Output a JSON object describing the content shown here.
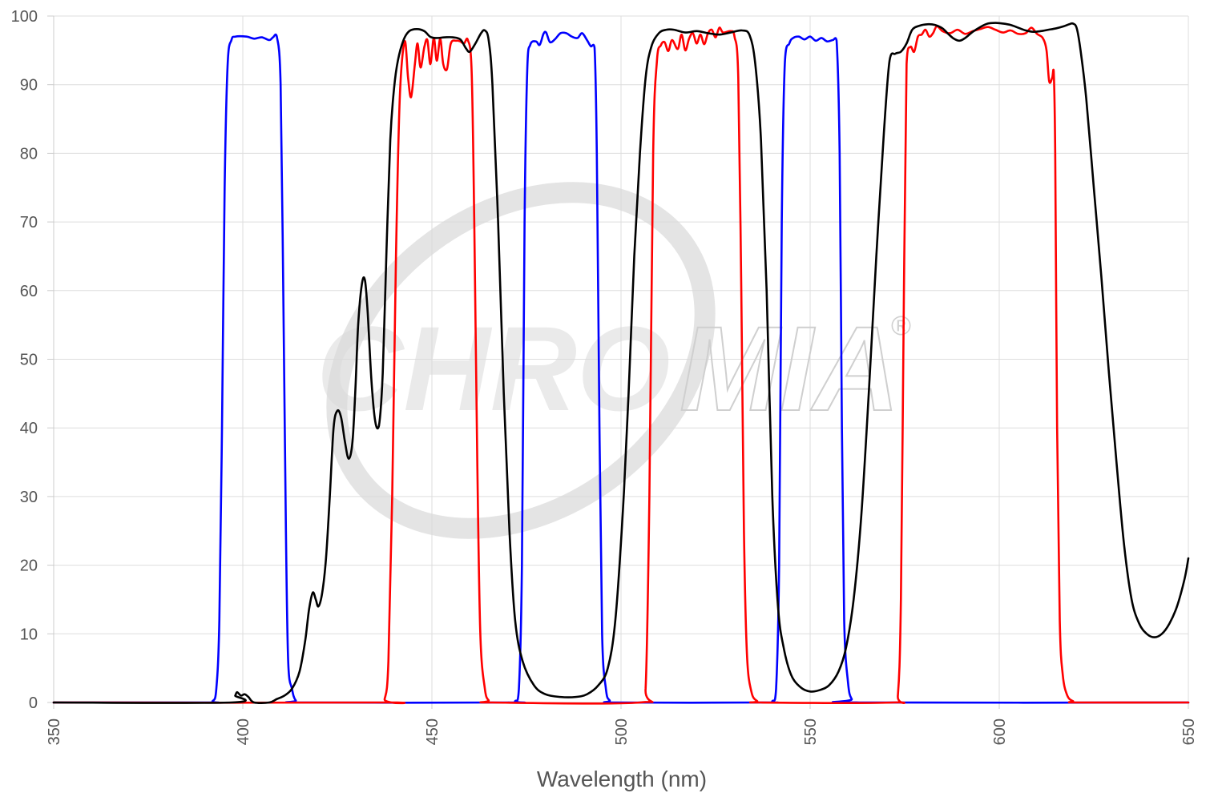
{
  "watermark": {
    "text_left": "CHRO",
    "text_right": "MIA",
    "registered": "®"
  },
  "chart_data": {
    "type": "line",
    "title": "",
    "xlabel": "Wavelength (nm)",
    "ylabel": "",
    "xlim": [
      350,
      650
    ],
    "ylim": [
      0,
      100
    ],
    "x_ticks": [
      350,
      400,
      450,
      500,
      550,
      600,
      650
    ],
    "y_ticks": [
      0,
      10,
      20,
      30,
      40,
      50,
      60,
      70,
      80,
      90,
      100
    ],
    "grid": true,
    "legend": "none",
    "colors": {
      "blue": "#0000ff",
      "red": "#ff0000",
      "black": "#000000",
      "grid": "#dddddd",
      "axis": "#cccccc"
    },
    "series": [
      {
        "color": "#0000ff",
        "points": [
          [
            350,
            0
          ],
          [
            390,
            0
          ],
          [
            392,
            0.2
          ],
          [
            393,
            2
          ],
          [
            393.8,
            12
          ],
          [
            394.5,
            40
          ],
          [
            395.2,
            75
          ],
          [
            396,
            93
          ],
          [
            397,
            96.5
          ],
          [
            398,
            97
          ],
          [
            401,
            97
          ],
          [
            403,
            96.7
          ],
          [
            405,
            96.9
          ],
          [
            407,
            96.5
          ],
          [
            408,
            96.9
          ],
          [
            409,
            97
          ],
          [
            410,
            90
          ],
          [
            410.7,
            60
          ],
          [
            411.4,
            25
          ],
          [
            412,
            6
          ],
          [
            413,
            2
          ],
          [
            414,
            0.3
          ],
          [
            416,
            0
          ],
          [
            470,
            0
          ],
          [
            472,
            0.2
          ],
          [
            473,
            2
          ],
          [
            473.8,
            20
          ],
          [
            474.5,
            70
          ],
          [
            475.2,
            92
          ],
          [
            476,
            95.8
          ],
          [
            477.5,
            96.3
          ],
          [
            478.5,
            95.8
          ],
          [
            479.5,
            97.4
          ],
          [
            480.2,
            97.6
          ],
          [
            481.2,
            96.2
          ],
          [
            482.5,
            96.6
          ],
          [
            484,
            97.5
          ],
          [
            485.5,
            97.5
          ],
          [
            487,
            97
          ],
          [
            488.5,
            96.8
          ],
          [
            489.7,
            97.5
          ],
          [
            491,
            96.5
          ],
          [
            492,
            95.6
          ],
          [
            493,
            95.4
          ],
          [
            493.6,
            80
          ],
          [
            494.3,
            40
          ],
          [
            495,
            10
          ],
          [
            496,
            2
          ],
          [
            497,
            0.3
          ],
          [
            499,
            0
          ],
          [
            538,
            0
          ],
          [
            540,
            0.2
          ],
          [
            541,
            2
          ],
          [
            541.8,
            20
          ],
          [
            542.5,
            70
          ],
          [
            543.3,
            93
          ],
          [
            544.5,
            96
          ],
          [
            545.5,
            96.8
          ],
          [
            547,
            97
          ],
          [
            548.5,
            96.6
          ],
          [
            550,
            97
          ],
          [
            551.5,
            96.4
          ],
          [
            553,
            96.8
          ],
          [
            554.5,
            96.3
          ],
          [
            556,
            96.5
          ],
          [
            557,
            96.4
          ],
          [
            557.8,
            80
          ],
          [
            558.4,
            40
          ],
          [
            559,
            12
          ],
          [
            560,
            3
          ],
          [
            561,
            0.5
          ],
          [
            563,
            0
          ],
          [
            650,
            0
          ]
        ]
      },
      {
        "color": "#ff0000",
        "points": [
          [
            350,
            0
          ],
          [
            436,
            0
          ],
          [
            437.5,
            0.5
          ],
          [
            438.5,
            6
          ],
          [
            439.5,
            30
          ],
          [
            440.5,
            65
          ],
          [
            441.5,
            88
          ],
          [
            442.8,
            96.3
          ],
          [
            443.7,
            91
          ],
          [
            444.5,
            88.2
          ],
          [
            445.5,
            93
          ],
          [
            446.2,
            96
          ],
          [
            447,
            92.5
          ],
          [
            448,
            95.5
          ],
          [
            448.8,
            96.5
          ],
          [
            449.6,
            93
          ],
          [
            450.5,
            96.8
          ],
          [
            451.3,
            93.5
          ],
          [
            452.2,
            96.7
          ],
          [
            453,
            93
          ],
          [
            454,
            92.3
          ],
          [
            455,
            96
          ],
          [
            456.5,
            96.4
          ],
          [
            457.5,
            96.3
          ],
          [
            458.5,
            96
          ],
          [
            459.5,
            96.5
          ],
          [
            460.5,
            92
          ],
          [
            461.2,
            70
          ],
          [
            462,
            35
          ],
          [
            462.8,
            10
          ],
          [
            464,
            2
          ],
          [
            465,
            0.3
          ],
          [
            466,
            0
          ],
          [
            505,
            0
          ],
          [
            506.5,
            2
          ],
          [
            507.5,
            30
          ],
          [
            508.5,
            80
          ],
          [
            509.5,
            93.5
          ],
          [
            510.5,
            95.7
          ],
          [
            511.5,
            96.2
          ],
          [
            512.5,
            94.9
          ],
          [
            513.5,
            96.5
          ],
          [
            515,
            95.2
          ],
          [
            516,
            97.3
          ],
          [
            517,
            95
          ],
          [
            518,
            96.7
          ],
          [
            519,
            97.5
          ],
          [
            520,
            96
          ],
          [
            521,
            97.3
          ],
          [
            522,
            95.9
          ],
          [
            523,
            97.5
          ],
          [
            524,
            98
          ],
          [
            525,
            96.9
          ],
          [
            526,
            98.3
          ],
          [
            527,
            97.6
          ],
          [
            529,
            97.8
          ],
          [
            530,
            97
          ],
          [
            531,
            91
          ],
          [
            531.8,
            60
          ],
          [
            532.5,
            25
          ],
          [
            533.3,
            7
          ],
          [
            534.5,
            1.5
          ],
          [
            536,
            0.2
          ],
          [
            537,
            0
          ],
          [
            572,
            0
          ],
          [
            573.2,
            1
          ],
          [
            574,
            15
          ],
          [
            574.8,
            60
          ],
          [
            575.5,
            93
          ],
          [
            576.5,
            95.5
          ],
          [
            577.5,
            94.8
          ],
          [
            578.5,
            97
          ],
          [
            579.5,
            97.3
          ],
          [
            580.5,
            98
          ],
          [
            581.5,
            97
          ],
          [
            582.5,
            97.5
          ],
          [
            583.5,
            98.5
          ],
          [
            585,
            97.8
          ],
          [
            587,
            97.5
          ],
          [
            589,
            98
          ],
          [
            591,
            97.4
          ],
          [
            593,
            97.8
          ],
          [
            595,
            98.1
          ],
          [
            597,
            98.4
          ],
          [
            599,
            98
          ],
          [
            601,
            97.6
          ],
          [
            603,
            97.9
          ],
          [
            605,
            97.4
          ],
          [
            607,
            97.5
          ],
          [
            608.5,
            98.3
          ],
          [
            610,
            97.4
          ],
          [
            611.5,
            96.8
          ],
          [
            612.5,
            95
          ],
          [
            613.2,
            90.5
          ],
          [
            614,
            91
          ],
          [
            614.4,
            92
          ],
          [
            614.8,
            80
          ],
          [
            615.3,
            40
          ],
          [
            616,
            12
          ],
          [
            616.8,
            4
          ],
          [
            618,
            1
          ],
          [
            619.5,
            0.2
          ],
          [
            621,
            0
          ],
          [
            650,
            0
          ]
        ]
      },
      {
        "color": "#000000",
        "points": [
          [
            350,
            0
          ],
          [
            397,
            0
          ],
          [
            398,
            1
          ],
          [
            398.5,
            1.5
          ],
          [
            399.5,
            1
          ],
          [
            400.5,
            1.2
          ],
          [
            401.5,
            0.8
          ],
          [
            403,
            0
          ],
          [
            407,
            0
          ],
          [
            409,
            0.5
          ],
          [
            411,
            1
          ],
          [
            413,
            2
          ],
          [
            415,
            4.5
          ],
          [
            416.5,
            9
          ],
          [
            417.5,
            13.5
          ],
          [
            418.5,
            16
          ],
          [
            419.3,
            15
          ],
          [
            420,
            14
          ],
          [
            421,
            16
          ],
          [
            422,
            21
          ],
          [
            423,
            30
          ],
          [
            424,
            40
          ],
          [
            425,
            42.5
          ],
          [
            426,
            41.5
          ],
          [
            427,
            38
          ],
          [
            428,
            35.5
          ],
          [
            429,
            38
          ],
          [
            429.8,
            46
          ],
          [
            430.5,
            55
          ],
          [
            431.5,
            61
          ],
          [
            432.3,
            61.5
          ],
          [
            433,
            57
          ],
          [
            434,
            47
          ],
          [
            435,
            41
          ],
          [
            436,
            40.3
          ],
          [
            437,
            48
          ],
          [
            438,
            66
          ],
          [
            439,
            82
          ],
          [
            440,
            89.5
          ],
          [
            441,
            93.5
          ],
          [
            442.5,
            96.5
          ],
          [
            444,
            97.8
          ],
          [
            446,
            98.1
          ],
          [
            448,
            97.8
          ],
          [
            449.5,
            97
          ],
          [
            451,
            96.8
          ],
          [
            453.5,
            96.9
          ],
          [
            455.5,
            96.9
          ],
          [
            457.5,
            96.6
          ],
          [
            459,
            95.3
          ],
          [
            460,
            94.8
          ],
          [
            461.5,
            96
          ],
          [
            463,
            97.5
          ],
          [
            464,
            97.9
          ],
          [
            465,
            96.5
          ],
          [
            466,
            90
          ],
          [
            467.5,
            70
          ],
          [
            469,
            45
          ],
          [
            470.5,
            25
          ],
          [
            472,
            12
          ],
          [
            474,
            6
          ],
          [
            477,
            2.5
          ],
          [
            480,
            1.2
          ],
          [
            484,
            0.8
          ],
          [
            488,
            0.8
          ],
          [
            491,
            1.2
          ],
          [
            494,
            2.5
          ],
          [
            496.5,
            5
          ],
          [
            498.5,
            12
          ],
          [
            500.5,
            28
          ],
          [
            502,
            45
          ],
          [
            503.5,
            65
          ],
          [
            505,
            80
          ],
          [
            506.5,
            91
          ],
          [
            508,
            95.5
          ],
          [
            510,
            97.5
          ],
          [
            512,
            98
          ],
          [
            514,
            98
          ],
          [
            517,
            97.6
          ],
          [
            520,
            97.8
          ],
          [
            523,
            97.5
          ],
          [
            526,
            97.3
          ],
          [
            529,
            97.6
          ],
          [
            532,
            97.9
          ],
          [
            534,
            97.2
          ],
          [
            535.5,
            93
          ],
          [
            537,
            82
          ],
          [
            538.5,
            60
          ],
          [
            540,
            30
          ],
          [
            541.5,
            14
          ],
          [
            543,
            8
          ],
          [
            545,
            4
          ],
          [
            547.5,
            2.2
          ],
          [
            550,
            1.6
          ],
          [
            552.5,
            1.8
          ],
          [
            555,
            2.5
          ],
          [
            557.5,
            4.5
          ],
          [
            559.5,
            8
          ],
          [
            561.5,
            15
          ],
          [
            563.5,
            27
          ],
          [
            565.5,
            45
          ],
          [
            567.5,
            65
          ],
          [
            569.5,
            83
          ],
          [
            571,
            93.5
          ],
          [
            572.5,
            94.5
          ],
          [
            574,
            94.8
          ],
          [
            575.5,
            96
          ],
          [
            577,
            98
          ],
          [
            579,
            98.6
          ],
          [
            581,
            98.8
          ],
          [
            583,
            98.7
          ],
          [
            585,
            98.2
          ],
          [
            586.5,
            97.4
          ],
          [
            588,
            96.7
          ],
          [
            589.5,
            96.4
          ],
          [
            591,
            96.8
          ],
          [
            593,
            97.7
          ],
          [
            595,
            98.4
          ],
          [
            597,
            98.9
          ],
          [
            599,
            99
          ],
          [
            601,
            98.9
          ],
          [
            603,
            98.7
          ],
          [
            605,
            98.3
          ],
          [
            607,
            97.9
          ],
          [
            609,
            97.7
          ],
          [
            611,
            97.8
          ],
          [
            613,
            98
          ],
          [
            615,
            98.2
          ],
          [
            617,
            98.5
          ],
          [
            618.5,
            98.8
          ],
          [
            619.5,
            98.9
          ],
          [
            620.5,
            98.2
          ],
          [
            621.5,
            95
          ],
          [
            623,
            88
          ],
          [
            625,
            75
          ],
          [
            627,
            62
          ],
          [
            629,
            48
          ],
          [
            631,
            35
          ],
          [
            633,
            23
          ],
          [
            635,
            15
          ],
          [
            637,
            11.5
          ],
          [
            639,
            10
          ],
          [
            641,
            9.5
          ],
          [
            643,
            10
          ],
          [
            645,
            11.5
          ],
          [
            647,
            14
          ],
          [
            649,
            18
          ],
          [
            650,
            21
          ]
        ]
      }
    ]
  }
}
